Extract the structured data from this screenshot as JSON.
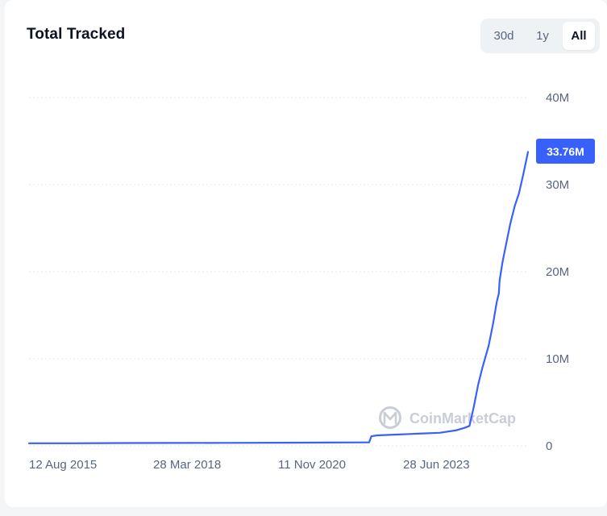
{
  "header": {
    "title": "Total Tracked"
  },
  "range_selector": {
    "options": [
      "30d",
      "1y",
      "All"
    ],
    "selected": "All"
  },
  "watermark": {
    "text": "CoinMarketCap"
  },
  "colors": {
    "line": "#3861fb",
    "badge": "#3861fb",
    "grid": "#e6e9ee",
    "axis_text": "#58667e"
  },
  "chart_data": {
    "type": "line",
    "title": "Total Tracked",
    "xlabel": "",
    "ylabel": "",
    "x_ticks": [
      "12 Aug 2015",
      "28 Mar 2018",
      "11 Nov 2020",
      "28 Jun 2023"
    ],
    "y_ticks": [
      "0",
      "10M",
      "20M",
      "30M",
      "40M"
    ],
    "ylim": [
      0,
      40000000
    ],
    "xlim": [
      "2015-08-12",
      "2025-04-20"
    ],
    "grid": "horizontal dotted",
    "current_value_label": "33.76M",
    "current_value": 33760000,
    "series": [
      {
        "values": [
          {
            "x": "2015-08-12",
            "y": 300000
          },
          {
            "x": "2016-06-01",
            "y": 300000
          },
          {
            "x": "2017-06-01",
            "y": 320000
          },
          {
            "x": "2018-06-01",
            "y": 330000
          },
          {
            "x": "2019-06-01",
            "y": 340000
          },
          {
            "x": "2020-06-01",
            "y": 360000
          },
          {
            "x": "2021-06-01",
            "y": 380000
          },
          {
            "x": "2022-03-01",
            "y": 400000
          },
          {
            "x": "2022-03-20",
            "y": 400000
          },
          {
            "x": "2022-04-05",
            "y": 1100000
          },
          {
            "x": "2022-05-15",
            "y": 1200000
          },
          {
            "x": "2022-10-01",
            "y": 1300000
          },
          {
            "x": "2023-03-01",
            "y": 1400000
          },
          {
            "x": "2023-08-01",
            "y": 1500000
          },
          {
            "x": "2023-12-01",
            "y": 1800000
          },
          {
            "x": "2024-02-01",
            "y": 2100000
          },
          {
            "x": "2024-03-01",
            "y": 2300000
          },
          {
            "x": "2024-04-01",
            "y": 4500000
          },
          {
            "x": "2024-05-01",
            "y": 7000000
          },
          {
            "x": "2024-06-01",
            "y": 9000000
          },
          {
            "x": "2024-07-15",
            "y": 11500000
          },
          {
            "x": "2024-08-15",
            "y": 14000000
          },
          {
            "x": "2024-09-10",
            "y": 16500000
          },
          {
            "x": "2024-09-25",
            "y": 17500000
          },
          {
            "x": "2024-10-01",
            "y": 19000000
          },
          {
            "x": "2024-10-20",
            "y": 21000000
          },
          {
            "x": "2024-11-01",
            "y": 22000000
          },
          {
            "x": "2024-11-20",
            "y": 23500000
          },
          {
            "x": "2024-12-15",
            "y": 25500000
          },
          {
            "x": "2025-01-15",
            "y": 27500000
          },
          {
            "x": "2025-02-15",
            "y": 29000000
          },
          {
            "x": "2025-03-15",
            "y": 31000000
          },
          {
            "x": "2025-04-10",
            "y": 33000000
          },
          {
            "x": "2025-04-20",
            "y": 33760000
          }
        ]
      }
    ]
  }
}
